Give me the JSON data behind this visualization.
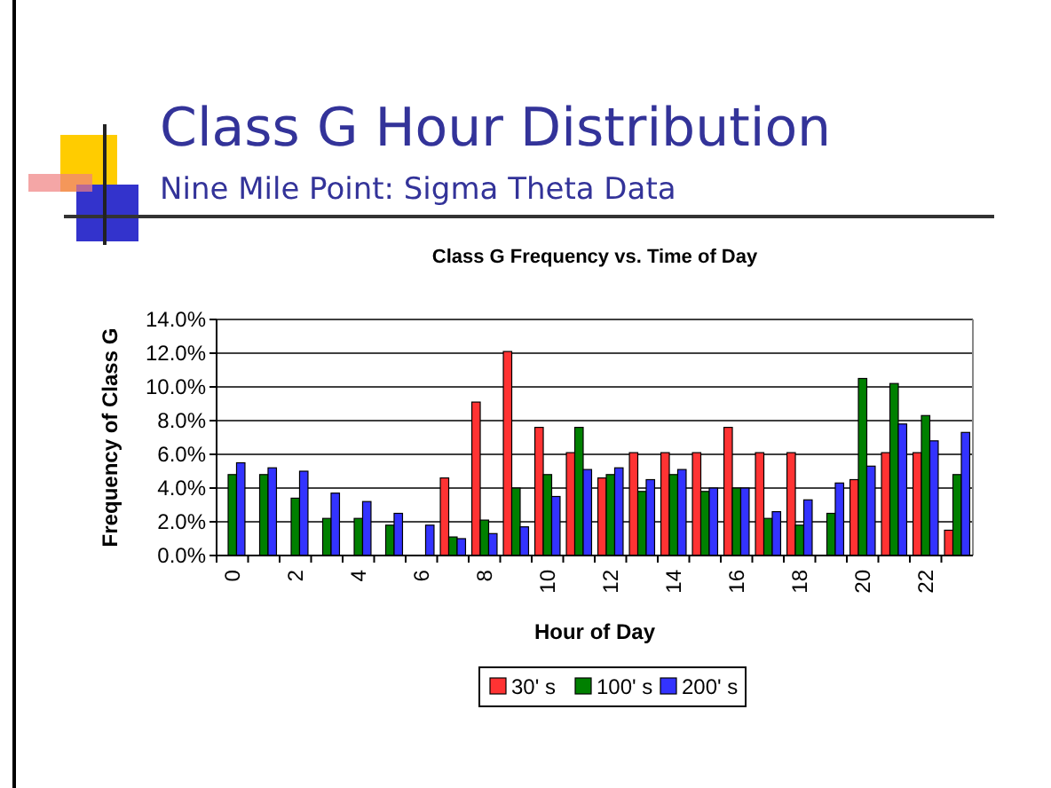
{
  "chart_data": {
    "type": "bar",
    "title": "Class G Frequency vs. Time of Day",
    "subtitle": "Nine Mile Point: Sigma Theta Data",
    "annotations": [
      "Class G Hour Distribution"
    ],
    "xlabel": "Hour of Day",
    "ylabel": "Frequency of Class G",
    "categories": [
      "0",
      null,
      "2",
      null,
      "4",
      null,
      "6",
      null,
      "8",
      null,
      "10",
      null,
      "12",
      null,
      "14",
      null,
      "16",
      null,
      "18",
      null,
      "20",
      null,
      "22",
      null
    ],
    "series": [
      {
        "name": "30' s",
        "color": "#ff3333",
        "values": [
          0,
          0,
          0,
          0,
          0,
          0,
          0,
          4.6,
          9.1,
          12.1,
          7.6,
          6.1,
          4.6,
          6.1,
          6.1,
          6.1,
          7.6,
          6.1,
          6.1,
          0,
          4.5,
          6.1,
          6.1,
          1.5
        ]
      },
      {
        "name": "100' s",
        "color": "#008000",
        "values": [
          4.8,
          4.8,
          3.4,
          2.2,
          2.2,
          1.8,
          0,
          1.1,
          2.1,
          4.0,
          4.8,
          7.6,
          4.8,
          3.8,
          4.8,
          3.8,
          4.0,
          2.2,
          1.8,
          2.5,
          10.5,
          10.2,
          8.3,
          4.8
        ]
      },
      {
        "name": "200' s",
        "color": "#3333ff",
        "values": [
          5.5,
          5.2,
          5.0,
          3.7,
          3.2,
          2.5,
          1.8,
          1.0,
          1.3,
          1.7,
          3.5,
          5.1,
          5.2,
          4.5,
          5.1,
          4.0,
          4.0,
          2.6,
          3.3,
          4.3,
          5.3,
          7.8,
          6.8,
          7.3
        ]
      }
    ],
    "ylim": [
      0,
      14
    ],
    "yticks": [
      {
        "value": 0,
        "label": "0.0%"
      },
      {
        "value": 2,
        "label": "2.0%"
      },
      {
        "value": 4,
        "label": "4.0%"
      },
      {
        "value": 6,
        "label": "6.0%"
      },
      {
        "value": 8,
        "label": "8.0%"
      },
      {
        "value": 10,
        "label": "10.0%"
      },
      {
        "value": 12,
        "label": "12.0%"
      },
      {
        "value": 14,
        "label": "14.0%"
      }
    ],
    "grid": "y",
    "legend": "bottom"
  }
}
